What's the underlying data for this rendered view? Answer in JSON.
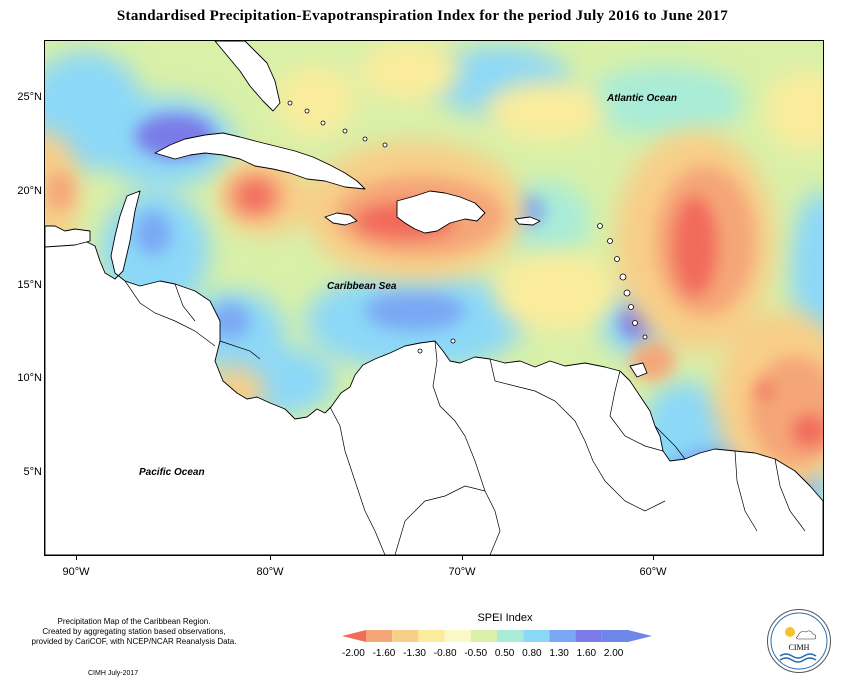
{
  "title": "Standardised Precipitation-Evapotranspiration Index for the period July 2016 to June 2017",
  "map": {
    "ocean_labels": {
      "atlantic": "Atlantic Ocean",
      "caribbean": "Caribbean Sea",
      "pacific": "Pacific Ocean"
    },
    "lat_labels": [
      "25°N",
      "20°N",
      "15°N",
      "10°N",
      "5°N"
    ],
    "lon_labels": [
      "90°W",
      "80°W",
      "70°W",
      "60°W"
    ],
    "background_color": "#d8f0a8",
    "land_color": "#ffffff"
  },
  "legend": {
    "title": "SPEI Index",
    "values": [
      "-2.00",
      "-1.60",
      "-1.30",
      "-0.80",
      "-0.50",
      "0.50",
      "0.80",
      "1.30",
      "1.60",
      "2.00"
    ],
    "colors": [
      "#f26b5b",
      "#f5a678",
      "#f8ce88",
      "#fbec9c",
      "#fbf8c8",
      "#d8f0a8",
      "#a8ecd8",
      "#8cd8f8",
      "#7aa8f4",
      "#7a7ae8",
      "#6e86e8"
    ]
  },
  "footer": {
    "note_line1": "Precipitation Map of the Caribbean Region.",
    "note_line2": "Created by aggregating station based observations,",
    "note_line3": "provided by CariCOF, with NCEP/NCAR Reanalysis Data.",
    "credit": "CIMH July-2017",
    "logo_text": "CIMH"
  }
}
